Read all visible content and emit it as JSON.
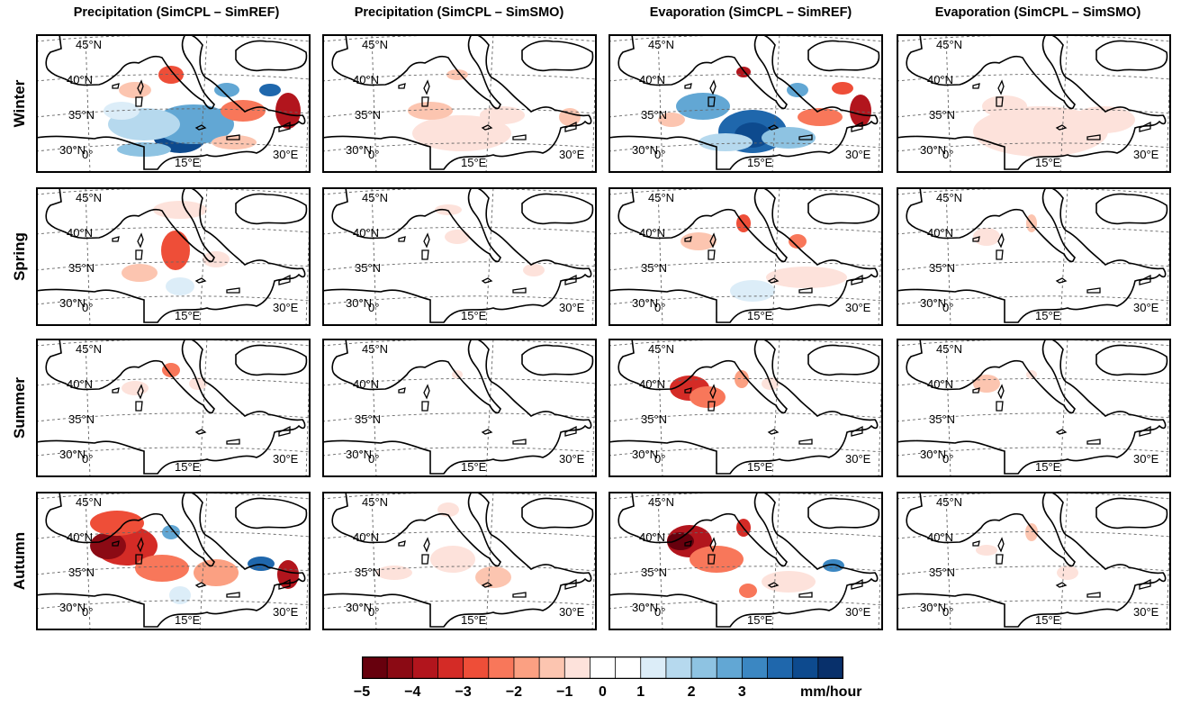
{
  "columns": [
    "Precipitation (SimCPL – SimREF)",
    "Precipitation (SimCPL – SimSMO)",
    "Evaporation (SimCPL – SimREF)",
    "Evaporation (SimCPL – SimSMO)"
  ],
  "rows": [
    "Winter",
    "Spring",
    "Summer",
    "Autumn"
  ],
  "map_labels": {
    "lat45": "45°N",
    "lat40": "40°N",
    "lat35": "35°N",
    "lat30": "30°N",
    "lon0": "0°",
    "lon15": "15°E",
    "lon30": "30°E"
  },
  "colorbar": {
    "ticks": [
      "−5",
      "−4",
      "−3",
      "−2",
      "−1",
      "0",
      "1",
      "2",
      "3"
    ],
    "unit": "mm/hour",
    "colors": [
      "#67000d",
      "#8b0a14",
      "#b2151d",
      "#d42b26",
      "#ee4e38",
      "#f8775a",
      "#fba082",
      "#fcc5b0",
      "#fde2db",
      "#ffffff",
      "#ffffff",
      "#dcedf8",
      "#b6d9ee",
      "#8ec3e2",
      "#62a7d4",
      "#3b87c2",
      "#1f67ac",
      "#0d4a8e",
      "#08306b"
    ]
  },
  "anomalies": [
    [
      [
        {
          "cx": 160,
          "cy": 112,
          "rx": 30,
          "ry": 20,
          "c": "#0d4a8e"
        },
        {
          "cx": 175,
          "cy": 100,
          "rx": 45,
          "ry": 22,
          "c": "#62a7d4"
        },
        {
          "cx": 120,
          "cy": 100,
          "rx": 40,
          "ry": 18,
          "c": "#b6d9ee"
        },
        {
          "cx": 95,
          "cy": 85,
          "rx": 20,
          "ry": 10,
          "c": "#dcedf8"
        },
        {
          "cx": 110,
          "cy": 62,
          "rx": 18,
          "ry": 9,
          "c": "#fcc5b0"
        },
        {
          "cx": 150,
          "cy": 45,
          "rx": 14,
          "ry": 10,
          "c": "#ee4e38"
        },
        {
          "cx": 230,
          "cy": 85,
          "rx": 25,
          "ry": 12,
          "c": "#f8775a"
        },
        {
          "cx": 280,
          "cy": 85,
          "rx": 14,
          "ry": 20,
          "c": "#b2151d"
        },
        {
          "cx": 212,
          "cy": 62,
          "rx": 14,
          "ry": 8,
          "c": "#62a7d4"
        },
        {
          "cx": 260,
          "cy": 62,
          "rx": 12,
          "ry": 7,
          "c": "#1f67ac"
        },
        {
          "cx": 120,
          "cy": 128,
          "rx": 30,
          "ry": 8,
          "c": "#8ec3e2"
        },
        {
          "cx": 220,
          "cy": 120,
          "rx": 25,
          "ry": 8,
          "c": "#fcc5b0"
        }
      ],
      [
        {
          "cx": 155,
          "cy": 110,
          "rx": 55,
          "ry": 20,
          "c": "#fde2db"
        },
        {
          "cx": 120,
          "cy": 85,
          "rx": 25,
          "ry": 10,
          "c": "#fcc5b0"
        },
        {
          "cx": 200,
          "cy": 90,
          "rx": 25,
          "ry": 10,
          "c": "#fde2db"
        },
        {
          "cx": 275,
          "cy": 92,
          "rx": 12,
          "ry": 10,
          "c": "#fcc5b0"
        },
        {
          "cx": 150,
          "cy": 45,
          "rx": 12,
          "ry": 6,
          "c": "#fcc5b0"
        }
      ],
      [
        {
          "cx": 160,
          "cy": 108,
          "rx": 38,
          "ry": 24,
          "c": "#1f67ac"
        },
        {
          "cx": 160,
          "cy": 112,
          "rx": 20,
          "ry": 14,
          "c": "#0d4a8e"
        },
        {
          "cx": 105,
          "cy": 80,
          "rx": 30,
          "ry": 15,
          "c": "#62a7d4"
        },
        {
          "cx": 200,
          "cy": 115,
          "rx": 30,
          "ry": 12,
          "c": "#8ec3e2"
        },
        {
          "cx": 130,
          "cy": 120,
          "rx": 30,
          "ry": 10,
          "c": "#b6d9ee"
        },
        {
          "cx": 70,
          "cy": 95,
          "rx": 15,
          "ry": 8,
          "c": "#fcc5b0"
        },
        {
          "cx": 235,
          "cy": 92,
          "rx": 25,
          "ry": 10,
          "c": "#f8775a"
        },
        {
          "cx": 280,
          "cy": 85,
          "rx": 12,
          "ry": 18,
          "c": "#b2151d"
        },
        {
          "cx": 150,
          "cy": 42,
          "rx": 8,
          "ry": 6,
          "c": "#b2151d"
        },
        {
          "cx": 210,
          "cy": 62,
          "rx": 12,
          "ry": 8,
          "c": "#62a7d4"
        },
        {
          "cx": 260,
          "cy": 60,
          "rx": 12,
          "ry": 7,
          "c": "#ee4e38"
        }
      ],
      [
        {
          "cx": 160,
          "cy": 108,
          "rx": 75,
          "ry": 28,
          "c": "#fde2db"
        },
        {
          "cx": 120,
          "cy": 80,
          "rx": 25,
          "ry": 12,
          "c": "#fde2db"
        },
        {
          "cx": 230,
          "cy": 95,
          "rx": 35,
          "ry": 15,
          "c": "#fde2db"
        }
      ]
    ],
    [
      [
        {
          "cx": 155,
          "cy": 70,
          "rx": 16,
          "ry": 22,
          "c": "#ee4e38"
        },
        {
          "cx": 160,
          "cy": 25,
          "rx": 30,
          "ry": 10,
          "c": "#fde2db"
        },
        {
          "cx": 160,
          "cy": 110,
          "rx": 16,
          "ry": 10,
          "c": "#dcedf8"
        },
        {
          "cx": 115,
          "cy": 95,
          "rx": 20,
          "ry": 10,
          "c": "#fcc5b0"
        },
        {
          "cx": 200,
          "cy": 80,
          "rx": 15,
          "ry": 9,
          "c": "#fde2db"
        }
      ],
      [
        {
          "cx": 150,
          "cy": 55,
          "rx": 14,
          "ry": 8,
          "c": "#fde2db"
        },
        {
          "cx": 235,
          "cy": 92,
          "rx": 12,
          "ry": 7,
          "c": "#fde2db"
        },
        {
          "cx": 140,
          "cy": 25,
          "rx": 15,
          "ry": 6,
          "c": "#fde2db"
        }
      ],
      [
        {
          "cx": 100,
          "cy": 60,
          "rx": 20,
          "ry": 10,
          "c": "#fcc5b0"
        },
        {
          "cx": 150,
          "cy": 40,
          "rx": 8,
          "ry": 10,
          "c": "#ee4e38"
        },
        {
          "cx": 160,
          "cy": 115,
          "rx": 25,
          "ry": 12,
          "c": "#dcedf8"
        },
        {
          "cx": 220,
          "cy": 100,
          "rx": 45,
          "ry": 12,
          "c": "#fde2db"
        },
        {
          "cx": 210,
          "cy": 60,
          "rx": 10,
          "ry": 8,
          "c": "#f8775a"
        }
      ],
      [
        {
          "cx": 100,
          "cy": 55,
          "rx": 15,
          "ry": 10,
          "c": "#fde2db"
        },
        {
          "cx": 150,
          "cy": 40,
          "rx": 6,
          "ry": 10,
          "c": "#fcc5b0"
        }
      ]
    ],
    [
      [
        {
          "cx": 150,
          "cy": 35,
          "rx": 10,
          "ry": 8,
          "c": "#f8775a"
        },
        {
          "cx": 110,
          "cy": 55,
          "rx": 15,
          "ry": 8,
          "c": "#fde2db"
        },
        {
          "cx": 180,
          "cy": 50,
          "rx": 10,
          "ry": 7,
          "c": "#fde2db"
        }
      ],
      [
        {
          "cx": 150,
          "cy": 40,
          "rx": 6,
          "ry": 5,
          "c": "#fde2db"
        }
      ],
      [
        {
          "cx": 90,
          "cy": 55,
          "rx": 22,
          "ry": 14,
          "c": "#d42b26"
        },
        {
          "cx": 110,
          "cy": 65,
          "rx": 20,
          "ry": 12,
          "c": "#f8775a"
        },
        {
          "cx": 148,
          "cy": 45,
          "rx": 8,
          "ry": 10,
          "c": "#fba082"
        },
        {
          "cx": 180,
          "cy": 50,
          "rx": 10,
          "ry": 7,
          "c": "#fde2db"
        }
      ],
      [
        {
          "cx": 100,
          "cy": 50,
          "rx": 15,
          "ry": 10,
          "c": "#fcc5b0"
        },
        {
          "cx": 150,
          "cy": 40,
          "rx": 6,
          "ry": 5,
          "c": "#fde2db"
        }
      ]
    ],
    [
      [
        {
          "cx": 100,
          "cy": 60,
          "rx": 35,
          "ry": 22,
          "c": "#d42b26"
        },
        {
          "cx": 80,
          "cy": 60,
          "rx": 20,
          "ry": 15,
          "c": "#8b0a14"
        },
        {
          "cx": 90,
          "cy": 35,
          "rx": 30,
          "ry": 14,
          "c": "#ee4e38"
        },
        {
          "cx": 140,
          "cy": 85,
          "rx": 30,
          "ry": 15,
          "c": "#f8775a"
        },
        {
          "cx": 200,
          "cy": 90,
          "rx": 25,
          "ry": 15,
          "c": "#fba082"
        },
        {
          "cx": 280,
          "cy": 92,
          "rx": 12,
          "ry": 16,
          "c": "#b2151d"
        },
        {
          "cx": 150,
          "cy": 45,
          "rx": 10,
          "ry": 8,
          "c": "#62a7d4"
        },
        {
          "cx": 250,
          "cy": 80,
          "rx": 15,
          "ry": 8,
          "c": "#1f67ac"
        },
        {
          "cx": 160,
          "cy": 115,
          "rx": 12,
          "ry": 10,
          "c": "#dcedf8"
        }
      ],
      [
        {
          "cx": 145,
          "cy": 75,
          "rx": 25,
          "ry": 15,
          "c": "#fde2db"
        },
        {
          "cx": 190,
          "cy": 95,
          "rx": 20,
          "ry": 12,
          "c": "#fcc5b0"
        },
        {
          "cx": 80,
          "cy": 90,
          "rx": 20,
          "ry": 8,
          "c": "#fde2db"
        },
        {
          "cx": 140,
          "cy": 20,
          "rx": 12,
          "ry": 8,
          "c": "#fde2db"
        }
      ],
      [
        {
          "cx": 90,
          "cy": 55,
          "rx": 25,
          "ry": 18,
          "c": "#b2151d"
        },
        {
          "cx": 80,
          "cy": 55,
          "rx": 15,
          "ry": 10,
          "c": "#67000d"
        },
        {
          "cx": 120,
          "cy": 75,
          "rx": 30,
          "ry": 15,
          "c": "#f8775a"
        },
        {
          "cx": 150,
          "cy": 40,
          "rx": 8,
          "ry": 10,
          "c": "#d42b26"
        },
        {
          "cx": 200,
          "cy": 100,
          "rx": 30,
          "ry": 12,
          "c": "#fde2db"
        },
        {
          "cx": 250,
          "cy": 82,
          "rx": 12,
          "ry": 7,
          "c": "#3b87c2"
        },
        {
          "cx": 155,
          "cy": 110,
          "rx": 10,
          "ry": 8,
          "c": "#f8775a"
        }
      ],
      [
        {
          "cx": 150,
          "cy": 45,
          "rx": 7,
          "ry": 10,
          "c": "#fcc5b0"
        },
        {
          "cx": 190,
          "cy": 90,
          "rx": 12,
          "ry": 8,
          "c": "#fde2db"
        },
        {
          "cx": 100,
          "cy": 65,
          "rx": 12,
          "ry": 6,
          "c": "#fde2db"
        }
      ]
    ]
  ]
}
